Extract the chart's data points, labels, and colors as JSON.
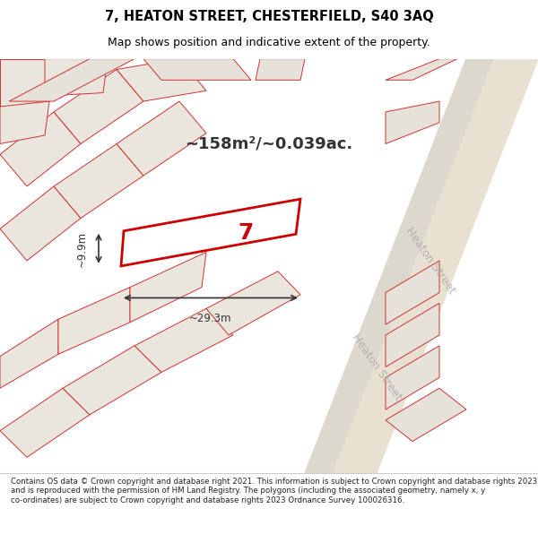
{
  "title_line1": "7, HEATON STREET, CHESTERFIELD, S40 3AQ",
  "title_line2": "Map shows position and indicative extent of the property.",
  "area_text": "~158m²/~0.039ac.",
  "width_label": "~29.3m",
  "height_label": "~9.9m",
  "property_number": "7",
  "street_name_top": "Heaton Street",
  "street_name_bottom": "Heaton Street",
  "footer_text": "Contains OS data © Crown copyright and database right 2021. This information is subject to Crown copyright and database rights 2023 and is reproduced with the permission of HM Land Registry. The polygons (including the associated geometry, namely x, y co-ordinates) are subject to Crown copyright and database rights 2023 Ordnance Survey 100026316.",
  "bg_color": "#f0ece4",
  "map_bg": "#f5f1eb",
  "plot_fill": "#ffffff",
  "plot_edge": "#cc0000",
  "building_fill": "#e8e4dc",
  "building_edge": "#cc3333",
  "road_color": "#e8e0d0",
  "line_color": "#cc3333",
  "footer_bg": "#ffffff",
  "title_bg": "#ffffff"
}
